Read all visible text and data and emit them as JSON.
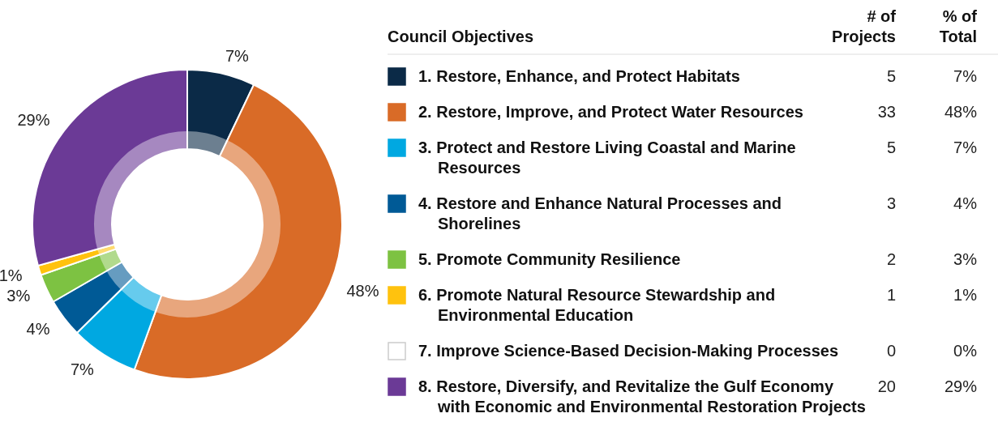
{
  "chart_data": {
    "type": "donut",
    "legend_title": "Council Objectives",
    "categories": [
      "1. Restore, Enhance, and Protect Habitats",
      "2. Restore, Improve, and Protect Water Resources",
      "3. Protect and Restore Living Coastal and Marine Resources",
      "4. Restore and Enhance Natural Processes and Shorelines",
      "5. Promote Community Resilience",
      "6. Promote Natural Resource Stewardship and Environmental Education",
      "7. Improve Science-Based Decision-Making Processes",
      "8. Restore, Diversify, and Revitalize the Gulf Economy with Economic and Environmental Restoration Projects"
    ],
    "values": [
      7,
      48,
      7,
      4,
      3,
      1,
      0,
      29
    ],
    "value_labels": [
      "7%",
      "48%",
      "7%",
      "4%",
      "3%",
      "1%",
      "0%",
      "29%"
    ],
    "colors": [
      "#0b2a47",
      "#d96b27",
      "#00a8e1",
      "#005a96",
      "#7dc242",
      "#ffc20e",
      "#ffffff",
      "#6b3a96"
    ],
    "annotations": [
      "# of Projects",
      "% of Total",
      "5",
      "33",
      "5",
      "3",
      "2",
      "1",
      "0",
      "20"
    ],
    "data_labels": true,
    "legend": "right"
  }
}
